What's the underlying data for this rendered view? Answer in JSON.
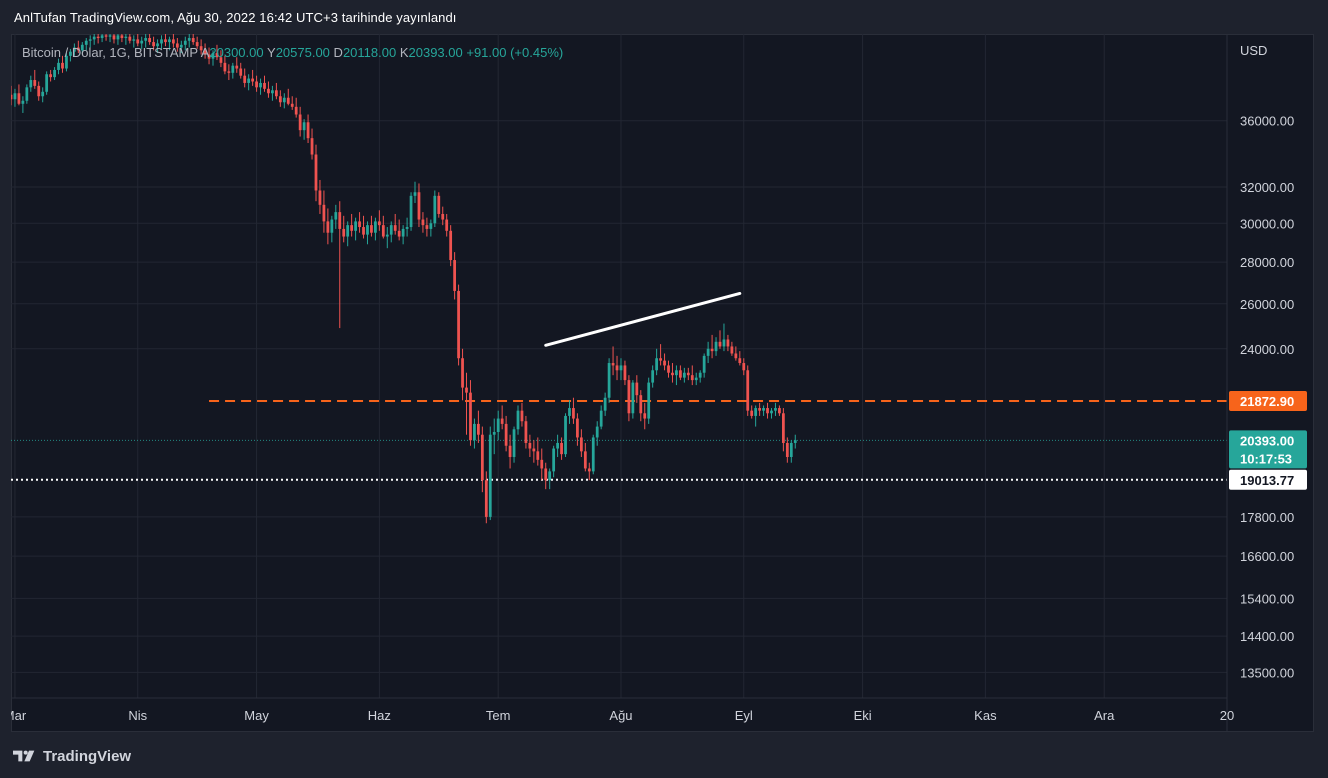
{
  "header": {
    "published_text": "AnlTufan TradingView.com, Ağu 30, 2022 16:42 UTC+3 tarihinde yayınlandı"
  },
  "legend": {
    "symbol": "Bitcoin / Dolar, 1G, BITSTAMP",
    "open_label": "A",
    "open_value": "20300.00",
    "high_label": "Y",
    "high_value": "20575.00",
    "low_label": "D",
    "low_value": "20118.00",
    "close_label": "K",
    "close_value": "20393.00",
    "change": "+91.00 (+0.45%)"
  },
  "footer": {
    "brand": "TradingView",
    "logo_icon": "tradingview-logo-icon"
  },
  "colors": {
    "up": "#26a69a",
    "down": "#ef5350",
    "price_tag": "#26a69a",
    "resistance": "#f7641b",
    "grid": "#232733"
  },
  "chart_data": {
    "type": "candlestick",
    "title": "Bitcoin / Dolar, 1G, BITSTAMP",
    "currency": "USD",
    "y_scale": "log",
    "ylim": [
      12900,
      42000
    ],
    "y_ticks": [
      "36000.00",
      "32000.00",
      "30000.00",
      "28000.00",
      "26000.00",
      "24000.00",
      "17800.00",
      "16600.00",
      "15400.00",
      "14400.00",
      "13500.00"
    ],
    "x_ticks": [
      {
        "label": "Mar",
        "date": "2022-03-01"
      },
      {
        "label": "Nis",
        "date": "2022-04-01"
      },
      {
        "label": "May",
        "date": "2022-05-01"
      },
      {
        "label": "Haz",
        "date": "2022-06-01"
      },
      {
        "label": "Tem",
        "date": "2022-07-01"
      },
      {
        "label": "Ağu",
        "date": "2022-08-01"
      },
      {
        "label": "Eyl",
        "date": "2022-09-01"
      },
      {
        "label": "Eki",
        "date": "2022-10-01"
      },
      {
        "label": "Kas",
        "date": "2022-11-01"
      },
      {
        "label": "Ara",
        "date": "2022-12-01"
      },
      {
        "label": "20",
        "date": "2023-01-01"
      }
    ],
    "x_range": [
      "2022-02-28",
      "2023-01-01"
    ],
    "grid": true,
    "last_price": {
      "value": "20393.00",
      "countdown": "10:17:53"
    },
    "horizontal_lines": [
      {
        "value": 21872.9,
        "label": "21872.90",
        "style": "dashed",
        "from_date": "2022-04-19"
      },
      {
        "value": 19013.77,
        "label": "19013.77",
        "style": "dotted"
      }
    ],
    "trendline": {
      "start": {
        "date": "2022-07-13",
        "value": 24150
      },
      "end": {
        "date": "2022-08-31",
        "value": 26480
      }
    },
    "candles_start_date": "2022-02-28",
    "candles": [
      [
        37700,
        38300,
        37000,
        37400
      ],
      [
        37400,
        38100,
        36900,
        37800
      ],
      [
        37800,
        38400,
        37000,
        37100
      ],
      [
        37100,
        37600,
        36500,
        37300
      ],
      [
        37300,
        38400,
        37100,
        38200
      ],
      [
        38200,
        39000,
        37900,
        38700
      ],
      [
        38700,
        39400,
        38100,
        38300
      ],
      [
        38300,
        38600,
        37300,
        37600
      ],
      [
        37600,
        38200,
        37200,
        37900
      ],
      [
        37900,
        39300,
        37700,
        39100
      ],
      [
        39100,
        39400,
        38600,
        38900
      ],
      [
        38900,
        39600,
        38700,
        39400
      ],
      [
        39400,
        40200,
        39100,
        39900
      ],
      [
        39900,
        40400,
        39200,
        39500
      ],
      [
        39500,
        40600,
        39300,
        40400
      ],
      [
        40400,
        40900,
        40000,
        40700
      ],
      [
        40700,
        41300,
        40400,
        41000
      ],
      [
        41000,
        41500,
        40600,
        40800
      ],
      [
        40800,
        41400,
        40500,
        41200
      ],
      [
        41200,
        41700,
        40800,
        41500
      ],
      [
        41500,
        41900,
        41000,
        41600
      ],
      [
        41600,
        42000,
        41200,
        41800
      ],
      [
        41800,
        42000,
        41300,
        41700
      ],
      [
        41700,
        42000,
        41400,
        41900
      ],
      [
        41900,
        42000,
        41500,
        41800
      ],
      [
        41800,
        42000,
        41400,
        41900
      ],
      [
        41900,
        42000,
        41300,
        41600
      ],
      [
        41600,
        42000,
        41200,
        41900
      ],
      [
        41900,
        42000,
        41400,
        41700
      ],
      [
        41700,
        42000,
        41200,
        41800
      ],
      [
        41800,
        42000,
        41300,
        41500
      ],
      [
        41500,
        41900,
        41000,
        41600
      ],
      [
        41600,
        42000,
        41100,
        41300
      ],
      [
        41300,
        41800,
        40900,
        41500
      ],
      [
        41500,
        42000,
        41000,
        41700
      ],
      [
        41700,
        42000,
        41200,
        41400
      ],
      [
        41400,
        41800,
        40800,
        41100
      ],
      [
        41100,
        41600,
        40600,
        41300
      ],
      [
        41300,
        41900,
        40900,
        41600
      ],
      [
        41600,
        42000,
        41100,
        41400
      ],
      [
        41400,
        41800,
        40800,
        41600
      ],
      [
        41600,
        42000,
        41000,
        41300
      ],
      [
        41300,
        41700,
        40700,
        41000
      ],
      [
        41000,
        41500,
        40600,
        41200
      ],
      [
        41200,
        41800,
        40800,
        41500
      ],
      [
        41500,
        42000,
        41000,
        41700
      ],
      [
        41700,
        42000,
        41200,
        41400
      ],
      [
        41400,
        41800,
        40900,
        41100
      ],
      [
        41100,
        41600,
        40500,
        40800
      ],
      [
        40800,
        41300,
        40200,
        40500
      ],
      [
        40500,
        41000,
        39800,
        40200
      ],
      [
        40200,
        40800,
        39700,
        40600
      ],
      [
        40600,
        41200,
        40100,
        40300
      ],
      [
        40300,
        40800,
        39600,
        39900
      ],
      [
        39900,
        40400,
        39100,
        39300
      ],
      [
        39300,
        39800,
        38700,
        39200
      ],
      [
        39200,
        39900,
        38800,
        39700
      ],
      [
        39700,
        40300,
        39200,
        39500
      ],
      [
        39500,
        39900,
        38800,
        39000
      ],
      [
        39000,
        39500,
        38200,
        38500
      ],
      [
        38500,
        39100,
        38000,
        38800
      ],
      [
        38800,
        39400,
        38300,
        38600
      ],
      [
        38600,
        39000,
        37900,
        38200
      ],
      [
        38200,
        38800,
        37700,
        38500
      ],
      [
        38500,
        39000,
        37900,
        38100
      ],
      [
        38100,
        38600,
        37500,
        37800
      ],
      [
        37800,
        38300,
        37300,
        38000
      ],
      [
        38000,
        38500,
        37400,
        37600
      ],
      [
        37600,
        38000,
        36900,
        37200
      ],
      [
        37200,
        37800,
        36800,
        37500
      ],
      [
        37500,
        38100,
        37000,
        37100
      ],
      [
        37100,
        37600,
        36700,
        36900
      ],
      [
        36900,
        37500,
        36200,
        36400
      ],
      [
        36400,
        36900,
        35000,
        35400
      ],
      [
        35400,
        36100,
        34800,
        35900
      ],
      [
        35900,
        36400,
        34600,
        34900
      ],
      [
        34900,
        35500,
        33600,
        33900
      ],
      [
        33900,
        34500,
        31200,
        31800
      ],
      [
        31800,
        32400,
        30500,
        31000
      ],
      [
        31000,
        31800,
        29500,
        30100
      ],
      [
        30100,
        30800,
        28900,
        29500
      ],
      [
        29500,
        30400,
        29000,
        30200
      ],
      [
        30200,
        31000,
        29700,
        30600
      ],
      [
        30600,
        31200,
        24900,
        29700
      ],
      [
        29700,
        30400,
        29000,
        29300
      ],
      [
        29300,
        30100,
        28800,
        29900
      ],
      [
        29900,
        30500,
        29300,
        29600
      ],
      [
        29600,
        30300,
        29100,
        30100
      ],
      [
        30100,
        30600,
        29500,
        29800
      ],
      [
        29800,
        30400,
        29200,
        29400
      ],
      [
        29400,
        30100,
        28900,
        29900
      ],
      [
        29900,
        30400,
        29300,
        29500
      ],
      [
        29500,
        30300,
        29100,
        30100
      ],
      [
        30100,
        30700,
        29600,
        29900
      ],
      [
        29900,
        30400,
        29200,
        29300
      ],
      [
        29300,
        29800,
        28700,
        29400
      ],
      [
        29400,
        30100,
        29000,
        29900
      ],
      [
        29900,
        30500,
        29400,
        29600
      ],
      [
        29600,
        30200,
        29100,
        29300
      ],
      [
        29300,
        29900,
        28900,
        29700
      ],
      [
        29700,
        30300,
        29300,
        29800
      ],
      [
        29800,
        31700,
        29600,
        31500
      ],
      [
        31500,
        32300,
        31100,
        31700
      ],
      [
        31700,
        32200,
        29800,
        30200
      ],
      [
        30200,
        30600,
        29500,
        29900
      ],
      [
        29900,
        30300,
        29300,
        29700
      ],
      [
        29700,
        30200,
        29300,
        30000
      ],
      [
        30000,
        31800,
        29800,
        31500
      ],
      [
        31500,
        31700,
        30300,
        30500
      ],
      [
        30500,
        30900,
        29900,
        30200
      ],
      [
        30200,
        30500,
        29300,
        29600
      ],
      [
        29600,
        29900,
        27800,
        28100
      ],
      [
        28100,
        28500,
        26200,
        26600
      ],
      [
        26600,
        26900,
        23300,
        23600
      ],
      [
        23600,
        24000,
        21900,
        22400
      ],
      [
        22400,
        23000,
        20600,
        22200
      ],
      [
        22200,
        22700,
        20200,
        20400
      ],
      [
        20400,
        21200,
        20100,
        21000
      ],
      [
        21000,
        21500,
        20300,
        20600
      ],
      [
        20600,
        20900,
        18600,
        19000
      ],
      [
        19000,
        19300,
        17600,
        17800
      ],
      [
        17800,
        20900,
        17700,
        20600
      ],
      [
        20600,
        21200,
        19900,
        20700
      ],
      [
        20700,
        21500,
        20400,
        21200
      ],
      [
        21200,
        21700,
        20800,
        21000
      ],
      [
        21000,
        21300,
        20000,
        20200
      ],
      [
        20200,
        20600,
        19400,
        19800
      ],
      [
        19800,
        20900,
        19600,
        20800
      ],
      [
        20800,
        21700,
        20600,
        21500
      ],
      [
        21500,
        21800,
        20900,
        21100
      ],
      [
        21100,
        21300,
        20100,
        20300
      ],
      [
        20300,
        20600,
        19800,
        20100
      ],
      [
        20100,
        20400,
        19600,
        20000
      ],
      [
        20000,
        20500,
        19500,
        19700
      ],
      [
        19700,
        20100,
        19000,
        19400
      ],
      [
        19400,
        19600,
        18700,
        19000
      ],
      [
        19000,
        19400,
        18700,
        19300
      ],
      [
        19300,
        20200,
        19100,
        20100
      ],
      [
        20100,
        20600,
        19800,
        20300
      ],
      [
        20300,
        20500,
        19700,
        19900
      ],
      [
        19900,
        21400,
        19800,
        21300
      ],
      [
        21300,
        21900,
        21000,
        21600
      ],
      [
        21600,
        22000,
        21000,
        21200
      ],
      [
        21200,
        21400,
        20200,
        20500
      ],
      [
        20500,
        20800,
        19800,
        20000
      ],
      [
        20000,
        20300,
        19300,
        19400
      ],
      [
        19400,
        19600,
        19000,
        19300
      ],
      [
        19300,
        20600,
        19200,
        20500
      ],
      [
        20500,
        21100,
        20200,
        20900
      ],
      [
        20900,
        21700,
        20800,
        21500
      ],
      [
        21500,
        22200,
        21300,
        22000
      ],
      [
        22000,
        23600,
        21800,
        23400
      ],
      [
        23400,
        24100,
        22900,
        23300
      ],
      [
        23300,
        23700,
        22700,
        23100
      ],
      [
        23100,
        23600,
        22700,
        23300
      ],
      [
        23300,
        23500,
        22500,
        22700
      ],
      [
        22700,
        22900,
        21100,
        21400
      ],
      [
        21400,
        22700,
        21200,
        22600
      ],
      [
        22600,
        22900,
        21800,
        22100
      ],
      [
        22100,
        22300,
        21100,
        21400
      ],
      [
        21400,
        21800,
        20800,
        21200
      ],
      [
        21200,
        22800,
        21000,
        22600
      ],
      [
        22600,
        23300,
        22400,
        23100
      ],
      [
        23100,
        24000,
        22900,
        23600
      ],
      [
        23600,
        24200,
        23300,
        23500
      ],
      [
        23500,
        23800,
        23100,
        23300
      ],
      [
        23300,
        23500,
        22800,
        23000
      ],
      [
        23000,
        23400,
        22600,
        22900
      ],
      [
        22900,
        23300,
        22500,
        23100
      ],
      [
        23100,
        23300,
        22700,
        22800
      ],
      [
        22800,
        23200,
        22600,
        23000
      ],
      [
        23000,
        23200,
        22700,
        22900
      ],
      [
        22900,
        23300,
        22500,
        22700
      ],
      [
        22700,
        23000,
        22500,
        22800
      ],
      [
        22800,
        23100,
        22600,
        23000
      ],
      [
        23000,
        23800,
        22800,
        23700
      ],
      [
        23700,
        24300,
        23400,
        24000
      ],
      [
        24000,
        24600,
        23600,
        23900
      ],
      [
        23900,
        24500,
        23700,
        24300
      ],
      [
        24300,
        24800,
        24000,
        24100
      ],
      [
        24100,
        25100,
        23900,
        24400
      ],
      [
        24400,
        24600,
        23900,
        24100
      ],
      [
        24100,
        24300,
        23700,
        23800
      ],
      [
        23800,
        24100,
        23500,
        23600
      ],
      [
        23600,
        23900,
        23300,
        23400
      ],
      [
        23400,
        23600,
        22900,
        23100
      ],
      [
        23100,
        23300,
        21300,
        21500
      ],
      [
        21500,
        21700,
        21200,
        21300
      ],
      [
        21300,
        21700,
        20900,
        21600
      ],
      [
        21600,
        21800,
        21300,
        21500
      ],
      [
        21500,
        21700,
        21300,
        21600
      ],
      [
        21600,
        21800,
        21200,
        21400
      ],
      [
        21400,
        21600,
        21200,
        21500
      ],
      [
        21500,
        21800,
        21300,
        21600
      ],
      [
        21600,
        21700,
        21300,
        21400
      ],
      [
        21400,
        21600,
        20000,
        20300
      ],
      [
        20300,
        20500,
        19600,
        19800
      ],
      [
        19800,
        20400,
        19600,
        20300
      ],
      [
        20300,
        20600,
        20100,
        20400
      ]
    ]
  }
}
